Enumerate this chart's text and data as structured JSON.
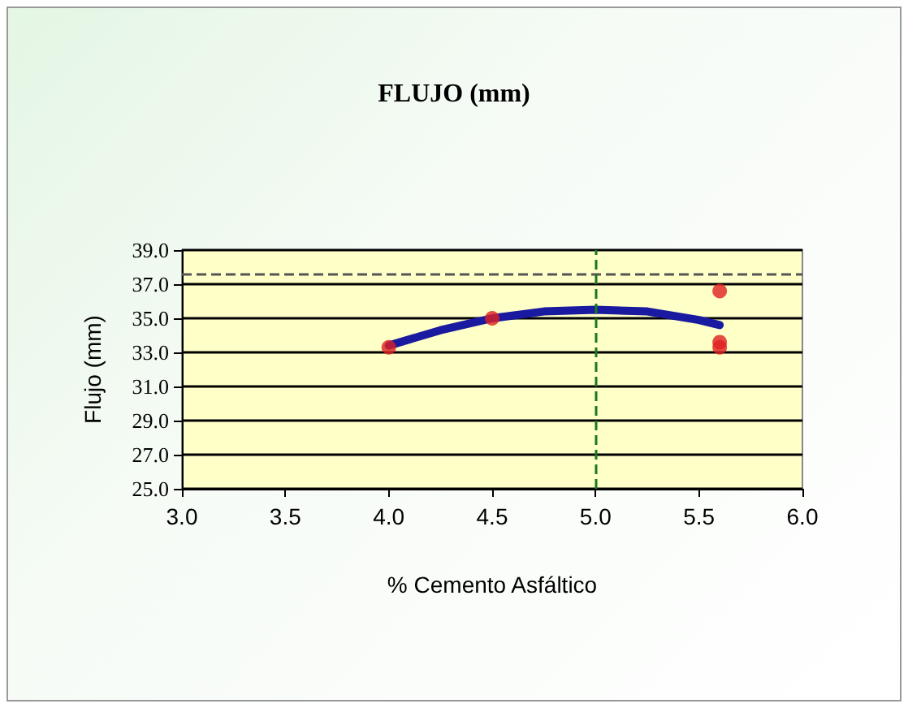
{
  "chart_data": {
    "type": "scatter",
    "title": "FLUJO (mm)",
    "xlabel": "% Cemento Asfáltico",
    "ylabel": "Flujo (mm)",
    "series": [
      {
        "color": "#e02020",
        "x": [
          4.0,
          4.5,
          5.6,
          5.6,
          5.6
        ],
        "values": [
          33.3,
          35.0,
          36.6,
          33.6,
          33.3
        ]
      },
      {
        "type": "line",
        "color": "#1a1aa0",
        "marker": "none",
        "x": [
          4.0,
          4.25,
          4.5,
          4.75,
          5.0,
          5.25,
          5.5,
          5.6
        ],
        "values": [
          33.4,
          34.3,
          35.0,
          35.4,
          35.5,
          35.4,
          34.9,
          34.6
        ]
      }
    ],
    "xlim": [
      3.0,
      6.0
    ],
    "xticks": [
      {
        "value": 3.0,
        "label": "3.0"
      },
      {
        "value": 3.5,
        "label": "3.5"
      },
      {
        "value": 4.0,
        "label": "4.0"
      },
      {
        "value": 4.5,
        "label": "4.5"
      },
      {
        "value": 5.0,
        "label": "5.0"
      },
      {
        "value": 5.5,
        "label": "5.5"
      },
      {
        "value": 6.0,
        "label": "6.0"
      }
    ],
    "ylim": [
      25.0,
      39.0
    ],
    "yticks": [
      {
        "value": 25,
        "label": "25.0"
      },
      {
        "value": 27,
        "label": "27.0"
      },
      {
        "value": 29,
        "label": "29.0"
      },
      {
        "value": 31,
        "label": "31.0"
      },
      {
        "value": 33,
        "label": "33.0"
      },
      {
        "value": 35,
        "label": "35.0"
      },
      {
        "value": 37,
        "label": "37.0"
      },
      {
        "value": 39,
        "label": "39.0"
      }
    ],
    "grid": "y",
    "marker": "circle",
    "ref_lines": [
      {
        "axis": "y",
        "value": 37.6,
        "color": "#555555",
        "line_style": "dashed"
      },
      {
        "axis": "x",
        "value": 5.0,
        "color": "#1a7a1a",
        "line_style": "dashed"
      }
    ]
  }
}
